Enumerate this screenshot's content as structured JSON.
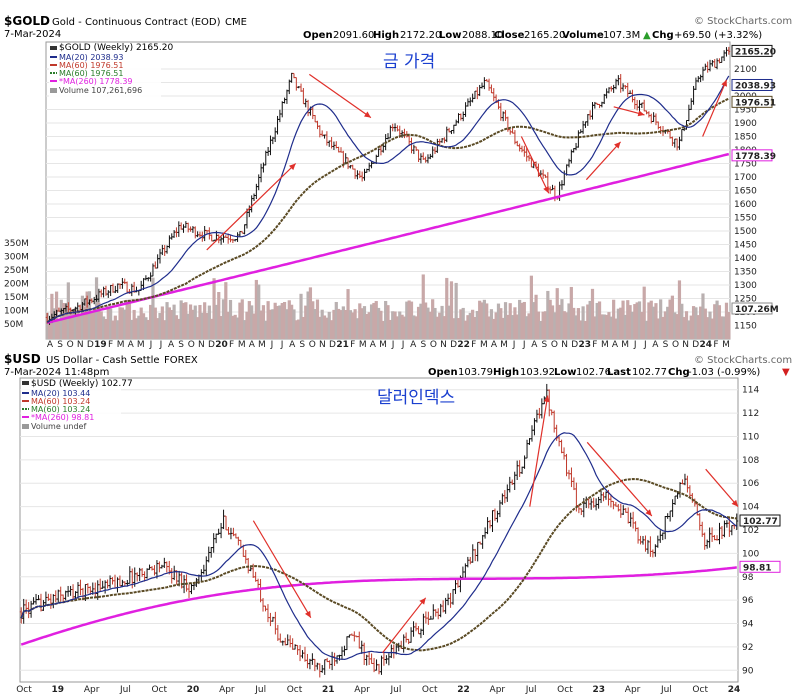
{
  "colors": {
    "price_up": "#111111",
    "price_down": "#c0392b",
    "ma20": "#1f2d8c",
    "ma60": "#5a4a24",
    "ma260": "#e020e0",
    "volume": "#c8a8a8",
    "arrow": "#e0302a",
    "annotation": "#1a3fcf",
    "grid": "#e6e6e6"
  },
  "chart_data": [
    {
      "type": "line",
      "symbol": "$GOLD",
      "title": "Gold - Continuous Contract (EOD)",
      "exchange": "CME",
      "date": "7-Mar-2024",
      "watermark": "© StockCharts.com",
      "annotation": "금 가격",
      "quote": {
        "open_label": "Open",
        "open": "2091.60",
        "high_label": "High",
        "high": "2172.20",
        "low_label": "Low",
        "low": "2088.10",
        "close_label": "Close",
        "close": "2165.20",
        "volume_label": "Volume",
        "volume": "107.3M",
        "chg_label": "Chg",
        "chg": "+69.50 (+3.32%)",
        "chg_arrow": "▲"
      },
      "legend": [
        {
          "name": "$GOLD (Weekly) 2165.20"
        },
        {
          "name": "MA(20) 2038.93"
        },
        {
          "name": "MA(60) 1976.51"
        },
        {
          "name": "MA(60) 1976.51"
        },
        {
          "name": "*MA(260) 1778.39"
        },
        {
          "name": "Volume 107,261,696"
        }
      ],
      "ylim": [
        1100,
        2200
      ],
      "y_ticks": [
        "2100",
        "2050",
        "2000",
        "1950",
        "1900",
        "1850",
        "1800",
        "1750",
        "1700",
        "1650",
        "1600",
        "1550",
        "1500",
        "1450",
        "1400",
        "1350",
        "1300",
        "1250",
        "1200",
        "1150"
      ],
      "last_value_tags": [
        "2165.20",
        "2038.93",
        "1976.51",
        "1778.39",
        "107.26M"
      ],
      "volume_ticks": [
        "350M",
        "300M",
        "250M",
        "200M",
        "150M",
        "100M",
        "50M"
      ],
      "x_ticks": [
        "A",
        "S",
        "O",
        "N",
        "D",
        "19",
        "F",
        "M",
        "A",
        "M",
        "J",
        "J",
        "A",
        "S",
        "O",
        "N",
        "D",
        "20",
        "F",
        "M",
        "A",
        "M",
        "J",
        "J",
        "A",
        "S",
        "O",
        "N",
        "D",
        "21",
        "F",
        "M",
        "A",
        "M",
        "J",
        "J",
        "A",
        "S",
        "O",
        "N",
        "D",
        "22",
        "F",
        "M",
        "A",
        "M",
        "J",
        "J",
        "A",
        "S",
        "O",
        "N",
        "D",
        "23",
        "F",
        "M",
        "A",
        "M",
        "J",
        "J",
        "A",
        "S",
        "O",
        "N",
        "D",
        "24",
        "F",
        "M"
      ],
      "key_points": [
        {
          "date": "2018-08",
          "price": 1180
        },
        {
          "date": "2018-11",
          "price": 1220
        },
        {
          "date": "2019-03",
          "price": 1300
        },
        {
          "date": "2019-05",
          "price": 1280
        },
        {
          "date": "2019-09",
          "price": 1520
        },
        {
          "date": "2019-12",
          "price": 1480
        },
        {
          "date": "2020-03",
          "price": 1480
        },
        {
          "date": "2020-05",
          "price": 1720
        },
        {
          "date": "2020-08",
          "price": 2070
        },
        {
          "date": "2020-11",
          "price": 1850
        },
        {
          "date": "2021-03",
          "price": 1690
        },
        {
          "date": "2021-06",
          "price": 1900
        },
        {
          "date": "2021-09",
          "price": 1750
        },
        {
          "date": "2022-03",
          "price": 2050
        },
        {
          "date": "2022-06",
          "price": 1830
        },
        {
          "date": "2022-10",
          "price": 1630
        },
        {
          "date": "2023-01",
          "price": 1930
        },
        {
          "date": "2023-04",
          "price": 2050
        },
        {
          "date": "2023-10",
          "price": 1820
        },
        {
          "date": "2023-12",
          "price": 2080
        },
        {
          "date": "2024-03",
          "price": 2165
        }
      ]
    },
    {
      "type": "line",
      "symbol": "$USD",
      "title": "US Dollar - Cash Settle",
      "exchange": "FOREX",
      "date": "7-Mar-2024 11:48pm",
      "watermark": "© StockCharts.com",
      "annotation": "달러인덱스",
      "quote": {
        "open_label": "Open",
        "open": "103.79",
        "high_label": "High",
        "high": "103.92",
        "low_label": "Low",
        "low": "102.76",
        "close_label": "Last",
        "close": "102.77",
        "volume_label": "Volume",
        "volume": "",
        "chg_label": "Chg",
        "chg": "-1.03 (-0.99%)",
        "chg_arrow": "▼"
      },
      "legend": [
        {
          "name": "$USD (Weekly) 102.77"
        },
        {
          "name": "MA(20) 103.44"
        },
        {
          "name": "MA(60) 103.24"
        },
        {
          "name": "MA(60) 103.24"
        },
        {
          "name": "*MA(260) 98.81"
        },
        {
          "name": "Volume undef"
        }
      ],
      "ylim": [
        89,
        115
      ],
      "y_ticks": [
        "114",
        "112",
        "110",
        "108",
        "106",
        "104",
        "102",
        "100",
        "98",
        "96",
        "94",
        "92",
        "90"
      ],
      "last_value_tags": [
        "102.77",
        "98.81"
      ],
      "x_ticks": [
        "Oct",
        "19",
        "Apr",
        "Jul",
        "Oct",
        "20",
        "Apr",
        "Jul",
        "Oct",
        "21",
        "Apr",
        "Jul",
        "Oct",
        "22",
        "Apr",
        "Jul",
        "Oct",
        "23",
        "Apr",
        "Jul",
        "Oct",
        "24"
      ],
      "key_points": [
        {
          "date": "2018-08",
          "price": 95
        },
        {
          "date": "2018-12",
          "price": 96.5
        },
        {
          "date": "2019-05",
          "price": 97.5
        },
        {
          "date": "2019-09",
          "price": 99
        },
        {
          "date": "2019-12",
          "price": 97
        },
        {
          "date": "2020-03",
          "price": 102.8
        },
        {
          "date": "2020-05",
          "price": 99.5
        },
        {
          "date": "2020-08",
          "price": 93
        },
        {
          "date": "2020-12",
          "price": 90
        },
        {
          "date": "2021-03",
          "price": 93
        },
        {
          "date": "2021-05",
          "price": 90
        },
        {
          "date": "2021-09",
          "price": 93.5
        },
        {
          "date": "2021-12",
          "price": 96
        },
        {
          "date": "2022-04",
          "price": 103
        },
        {
          "date": "2022-07",
          "price": 108
        },
        {
          "date": "2022-09",
          "price": 114
        },
        {
          "date": "2022-12",
          "price": 104
        },
        {
          "date": "2023-03",
          "price": 105
        },
        {
          "date": "2023-07",
          "price": 100
        },
        {
          "date": "2023-10",
          "price": 106.5
        },
        {
          "date": "2023-12",
          "price": 101
        },
        {
          "date": "2024-03",
          "price": 102.77
        }
      ]
    }
  ]
}
